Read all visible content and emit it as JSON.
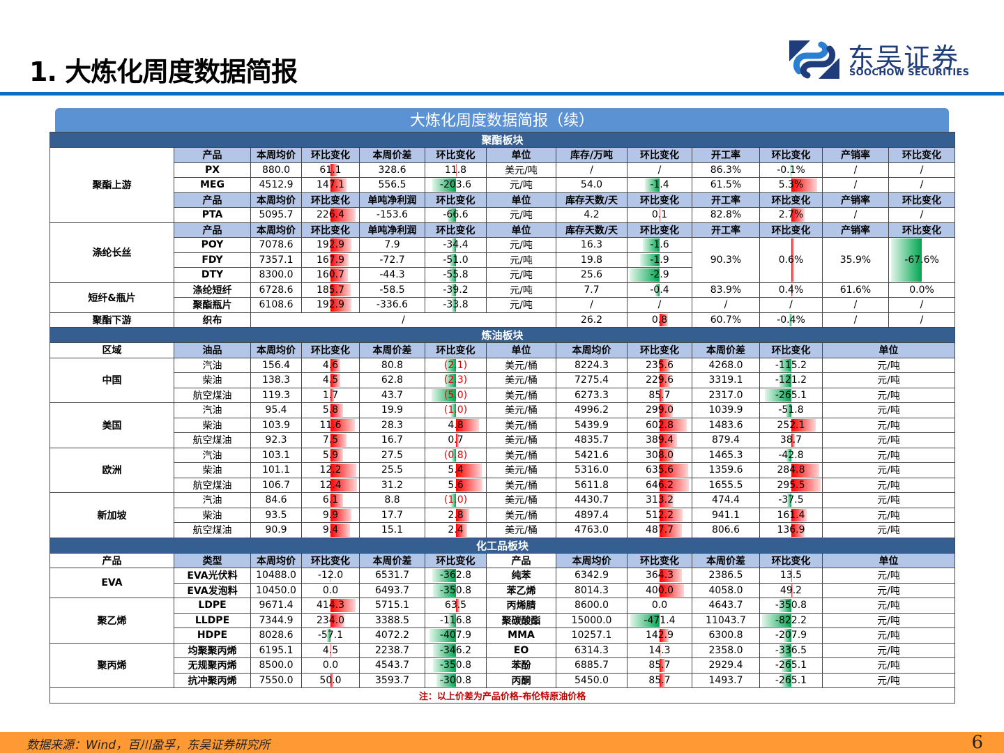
{
  "header": {
    "title": "1. 大炼化周度数据简报",
    "logo_cn": "东吴证券",
    "logo_en": "SOOCHOW SECURITIES"
  },
  "banner": "大炼化周度数据简报（续）",
  "colors": {
    "section": "#365f91",
    "header_cell": "#b4c6e7",
    "banner": "#5b92d4",
    "rule": "#0a6fc2",
    "footer": "#ff9933",
    "positive": "#ff0000",
    "negative": "#00a650"
  },
  "polyester": {
    "section_title": "聚酯板块",
    "upstream_group": "聚酯上游",
    "hdr1": [
      "产品",
      "本周均价",
      "环比变化",
      "本周价差",
      "环比变化",
      "单位",
      "库存/万吨",
      "环比变化",
      "开工率",
      "环比变化",
      "产销率",
      "环比变化"
    ],
    "rows1": [
      [
        "PX",
        "880.0",
        "61.1",
        "328.6",
        "11.8",
        "美元/吨",
        "/",
        "/",
        "86.3%",
        "-0.1%",
        "/",
        "/"
      ],
      [
        "MEG",
        "4512.9",
        "147.1",
        "556.5",
        "-203.6",
        "元/吨",
        "54.0",
        "-1.4",
        "61.5%",
        "5.3%",
        "/",
        "/"
      ]
    ],
    "hdr2": [
      "产品",
      "本周均价",
      "环比变化",
      "单吨净利润",
      "环比变化",
      "单位",
      "库存天数/天",
      "环比变化",
      "开工率",
      "环比变化",
      "产销率",
      "环比变化"
    ],
    "rows2": [
      [
        "PTA",
        "5095.7",
        "226.4",
        "-153.6",
        "-66.6",
        "元/吨",
        "4.2",
        "0.1",
        "82.8%",
        "2.7%",
        "/",
        "/"
      ]
    ],
    "filament_group": "涤纶长丝",
    "hdr3": [
      "产品",
      "本周均价",
      "环比变化",
      "单吨净利润",
      "环比变化",
      "单位",
      "库存天数/天",
      "环比变化",
      "开工率",
      "环比变化",
      "产销率",
      "环比变化"
    ],
    "rows3": [
      [
        "POY",
        "7078.6",
        "192.9",
        "7.9",
        "-34.4",
        "元/吨",
        "16.3",
        "-1.6"
      ],
      [
        "FDY",
        "7357.1",
        "167.9",
        "-72.7",
        "-51.0",
        "元/吨",
        "19.8",
        "-1.9"
      ],
      [
        "DTY",
        "8300.0",
        "160.7",
        "-44.3",
        "-55.8",
        "元/吨",
        "25.6",
        "-2.9"
      ]
    ],
    "filament_merged": [
      "90.3%",
      "0.6%",
      "35.9%",
      "-67.6%"
    ],
    "staple_group": "短纤&瓶片",
    "rows4": [
      [
        "涤纶短纤",
        "6728.6",
        "185.7",
        "-58.5",
        "-39.2",
        "元/吨",
        "7.7",
        "-0.4",
        "83.9%",
        "0.4%",
        "61.6%",
        "0.0%"
      ],
      [
        "聚酯瓶片",
        "6108.6",
        "192.9",
        "-336.6",
        "-33.8",
        "元/吨",
        "/",
        "/",
        "/",
        "/",
        "/",
        "/"
      ]
    ],
    "downstream_group": "聚酯下游",
    "row5": [
      "织布",
      "/",
      "26.2",
      "0.8",
      "60.7%",
      "-0.4%",
      "/",
      "/"
    ]
  },
  "refining": {
    "section_title": "炼油板块",
    "hdr": [
      "区域",
      "油品",
      "本周均价",
      "环比变化",
      "本周价差",
      "环比变化",
      "单位",
      "本周均价",
      "环比变化",
      "本周价差",
      "环比变化",
      "单位"
    ],
    "regions": [
      {
        "name": "中国",
        "rows": [
          [
            "汽油",
            "156.4",
            "4.6",
            "80.8",
            "(2.1)",
            "美元/桶",
            "8224.3",
            "235.6",
            "4268.0",
            "-115.2",
            "元/吨"
          ],
          [
            "柴油",
            "138.3",
            "4.5",
            "62.8",
            "(2.3)",
            "美元/桶",
            "7275.4",
            "229.6",
            "3319.1",
            "-121.2",
            "元/吨"
          ],
          [
            "航空煤油",
            "119.3",
            "1.7",
            "43.7",
            "(5.0)",
            "美元/桶",
            "6273.3",
            "85.7",
            "2317.0",
            "-265.1",
            "元/吨"
          ]
        ]
      },
      {
        "name": "美国",
        "rows": [
          [
            "汽油",
            "95.4",
            "5.8",
            "19.9",
            "(1.0)",
            "美元/桶",
            "4996.2",
            "299.0",
            "1039.9",
            "-51.8",
            "元/吨"
          ],
          [
            "柴油",
            "103.9",
            "11.6",
            "28.3",
            "4.8",
            "美元/桶",
            "5439.9",
            "602.8",
            "1483.6",
            "252.1",
            "元/吨"
          ],
          [
            "航空煤油",
            "92.3",
            "7.5",
            "16.7",
            "0.7",
            "美元/桶",
            "4835.7",
            "389.4",
            "879.4",
            "38.7",
            "元/吨"
          ]
        ]
      },
      {
        "name": "欧洲",
        "rows": [
          [
            "汽油",
            "103.1",
            "5.9",
            "27.5",
            "(0.8)",
            "美元/桶",
            "5421.6",
            "308.0",
            "1465.3",
            "-42.8",
            "元/吨"
          ],
          [
            "柴油",
            "101.1",
            "12.2",
            "25.5",
            "5.4",
            "美元/桶",
            "5316.0",
            "635.6",
            "1359.6",
            "284.8",
            "元/吨"
          ],
          [
            "航空煤油",
            "106.7",
            "12.4",
            "31.2",
            "5.6",
            "美元/桶",
            "5611.8",
            "646.2",
            "1655.5",
            "295.5",
            "元/吨"
          ]
        ]
      },
      {
        "name": "新加坡",
        "rows": [
          [
            "汽油",
            "84.6",
            "6.1",
            "8.8",
            "(1.0)",
            "美元/桶",
            "4430.7",
            "313.2",
            "474.4",
            "-37.5",
            "元/吨"
          ],
          [
            "柴油",
            "93.5",
            "9.9",
            "17.7",
            "2.8",
            "美元/桶",
            "4897.4",
            "512.2",
            "941.1",
            "161.4",
            "元/吨"
          ],
          [
            "航空煤油",
            "90.9",
            "9.4",
            "15.1",
            "2.4",
            "美元/桶",
            "4763.0",
            "487.7",
            "806.6",
            "136.9",
            "元/吨"
          ]
        ]
      }
    ]
  },
  "chemicals": {
    "section_title": "化工品板块",
    "hdr": [
      "产品",
      "类型",
      "本周均价",
      "环比变化",
      "本周价差",
      "环比变化",
      "产品",
      "本周均价",
      "环比变化",
      "本周价差",
      "环比变化",
      "单位"
    ],
    "groups": [
      {
        "name": "EVA",
        "rows": [
          [
            "EVA光伏料",
            "10488.0",
            "-12.0",
            "6531.7",
            "-362.8",
            "纯苯",
            "6342.9",
            "364.3",
            "2386.5",
            "13.5",
            "元/吨"
          ],
          [
            "EVA发泡料",
            "10450.0",
            "0.0",
            "6493.7",
            "-350.8",
            "苯乙烯",
            "8014.3",
            "400.0",
            "4058.0",
            "49.2",
            "元/吨"
          ]
        ]
      },
      {
        "name": "聚乙烯",
        "rows": [
          [
            "LDPE",
            "9671.4",
            "414.3",
            "5715.1",
            "63.5",
            "丙烯腈",
            "8600.0",
            "0.0",
            "4643.7",
            "-350.8",
            "元/吨"
          ],
          [
            "LLDPE",
            "7344.9",
            "234.0",
            "3388.5",
            "-116.8",
            "聚碳酸酯",
            "15000.0",
            "-471.4",
            "11043.7",
            "-822.2",
            "元/吨"
          ],
          [
            "HDPE",
            "8028.6",
            "-57.1",
            "4072.2",
            "-407.9",
            "MMA",
            "10257.1",
            "142.9",
            "6300.8",
            "-207.9",
            "元/吨"
          ]
        ]
      },
      {
        "name": "聚丙烯",
        "rows": [
          [
            "均聚聚丙烯",
            "6195.1",
            "4.5",
            "2238.7",
            "-346.2",
            "EO",
            "6314.3",
            "14.3",
            "2358.0",
            "-336.5",
            "元/吨"
          ],
          [
            "无规聚丙烯",
            "8500.0",
            "0.0",
            "4543.7",
            "-350.8",
            "苯酚",
            "6885.7",
            "85.7",
            "2929.4",
            "-265.1",
            "元/吨"
          ],
          [
            "抗冲聚丙烯",
            "7550.0",
            "50.0",
            "3593.7",
            "-300.8",
            "丙酮",
            "5450.0",
            "85.7",
            "1493.7",
            "-265.1",
            "元/吨"
          ]
        ]
      }
    ],
    "note": "注：以上价差为产品价格-布伦特原油价格"
  },
  "footer": {
    "source": "数据来源：Wind，百川盈孚，东吴证券研究所",
    "page": "6"
  }
}
